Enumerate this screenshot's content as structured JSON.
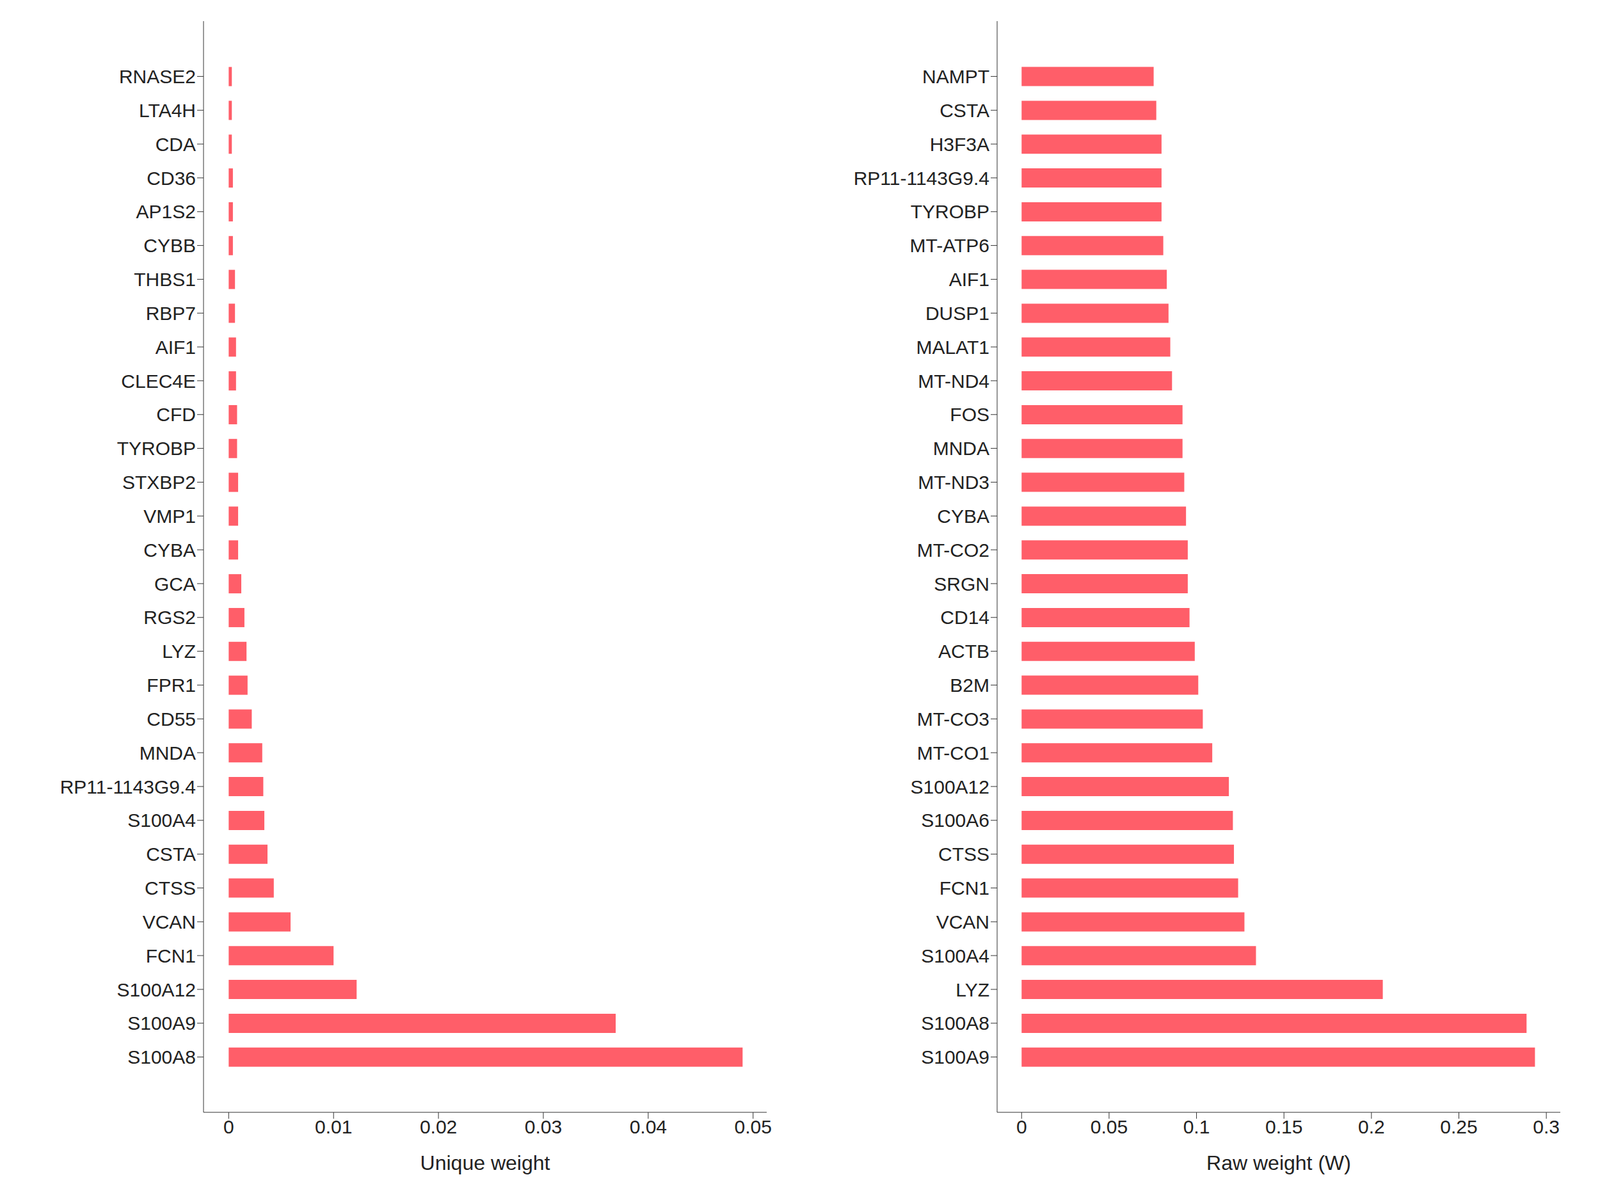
{
  "chart_data": [
    {
      "type": "bar",
      "orientation": "horizontal",
      "x_label": "Unique weight",
      "color": "#ff5e69",
      "categories": [
        "RNASE2",
        "LTA4H",
        "CDA",
        "CD36",
        "AP1S2",
        "CYBB",
        "THBS1",
        "RBP7",
        "AIF1",
        "CLEC4E",
        "CFD",
        "TYROBP",
        "STXBP2",
        "VMP1",
        "CYBA",
        "GCA",
        "RGS2",
        "LYZ",
        "FPR1",
        "CD55",
        "MNDA",
        "RP11-1143G9.4",
        "S100A4",
        "CSTA",
        "CTSS",
        "VCAN",
        "FCN1",
        "S100A12",
        "S100A9",
        "S100A8"
      ],
      "values": [
        0.0003,
        0.0003,
        0.0003,
        0.0004,
        0.0004,
        0.0004,
        0.0006,
        0.0006,
        0.0007,
        0.0007,
        0.0008,
        0.0008,
        0.0009,
        0.0009,
        0.0009,
        0.0012,
        0.0015,
        0.0017,
        0.0018,
        0.0022,
        0.0032,
        0.0033,
        0.0034,
        0.0037,
        0.0043,
        0.0059,
        0.01,
        0.0122,
        0.0369,
        0.049
      ],
      "xlim": [
        -0.0024,
        0.0513
      ],
      "xticks": [
        0,
        0.01,
        0.02,
        0.03,
        0.04,
        0.05
      ]
    },
    {
      "type": "bar",
      "orientation": "horizontal",
      "x_label": "Raw weight (W)",
      "color": "#ff5e69",
      "categories": [
        "NAMPT",
        "CSTA",
        "H3F3A",
        "RP11-1143G9.4",
        "TYROBP",
        "MT-ATP6",
        "AIF1",
        "DUSP1",
        "MALAT1",
        "MT-ND4",
        "FOS",
        "MNDA",
        "MT-ND3",
        "CYBA",
        "MT-CO2",
        "SRGN",
        "CD14",
        "ACTB",
        "B2M",
        "MT-CO3",
        "MT-CO1",
        "S100A12",
        "S100A6",
        "CTSS",
        "FCN1",
        "VCAN",
        "S100A4",
        "LYZ",
        "S100A8",
        "S100A9"
      ],
      "values": [
        0.0755,
        0.077,
        0.08,
        0.08,
        0.08,
        0.081,
        0.083,
        0.084,
        0.085,
        0.086,
        0.092,
        0.092,
        0.093,
        0.094,
        0.095,
        0.095,
        0.096,
        0.099,
        0.101,
        0.1036,
        0.109,
        0.1185,
        0.1208,
        0.1214,
        0.1238,
        0.1274,
        0.134,
        0.2065,
        0.2887,
        0.2935
      ],
      "xlim": [
        -0.014,
        0.308
      ],
      "xticks": [
        0,
        0.05,
        0.1,
        0.15,
        0.2,
        0.25,
        0.3
      ]
    }
  ]
}
